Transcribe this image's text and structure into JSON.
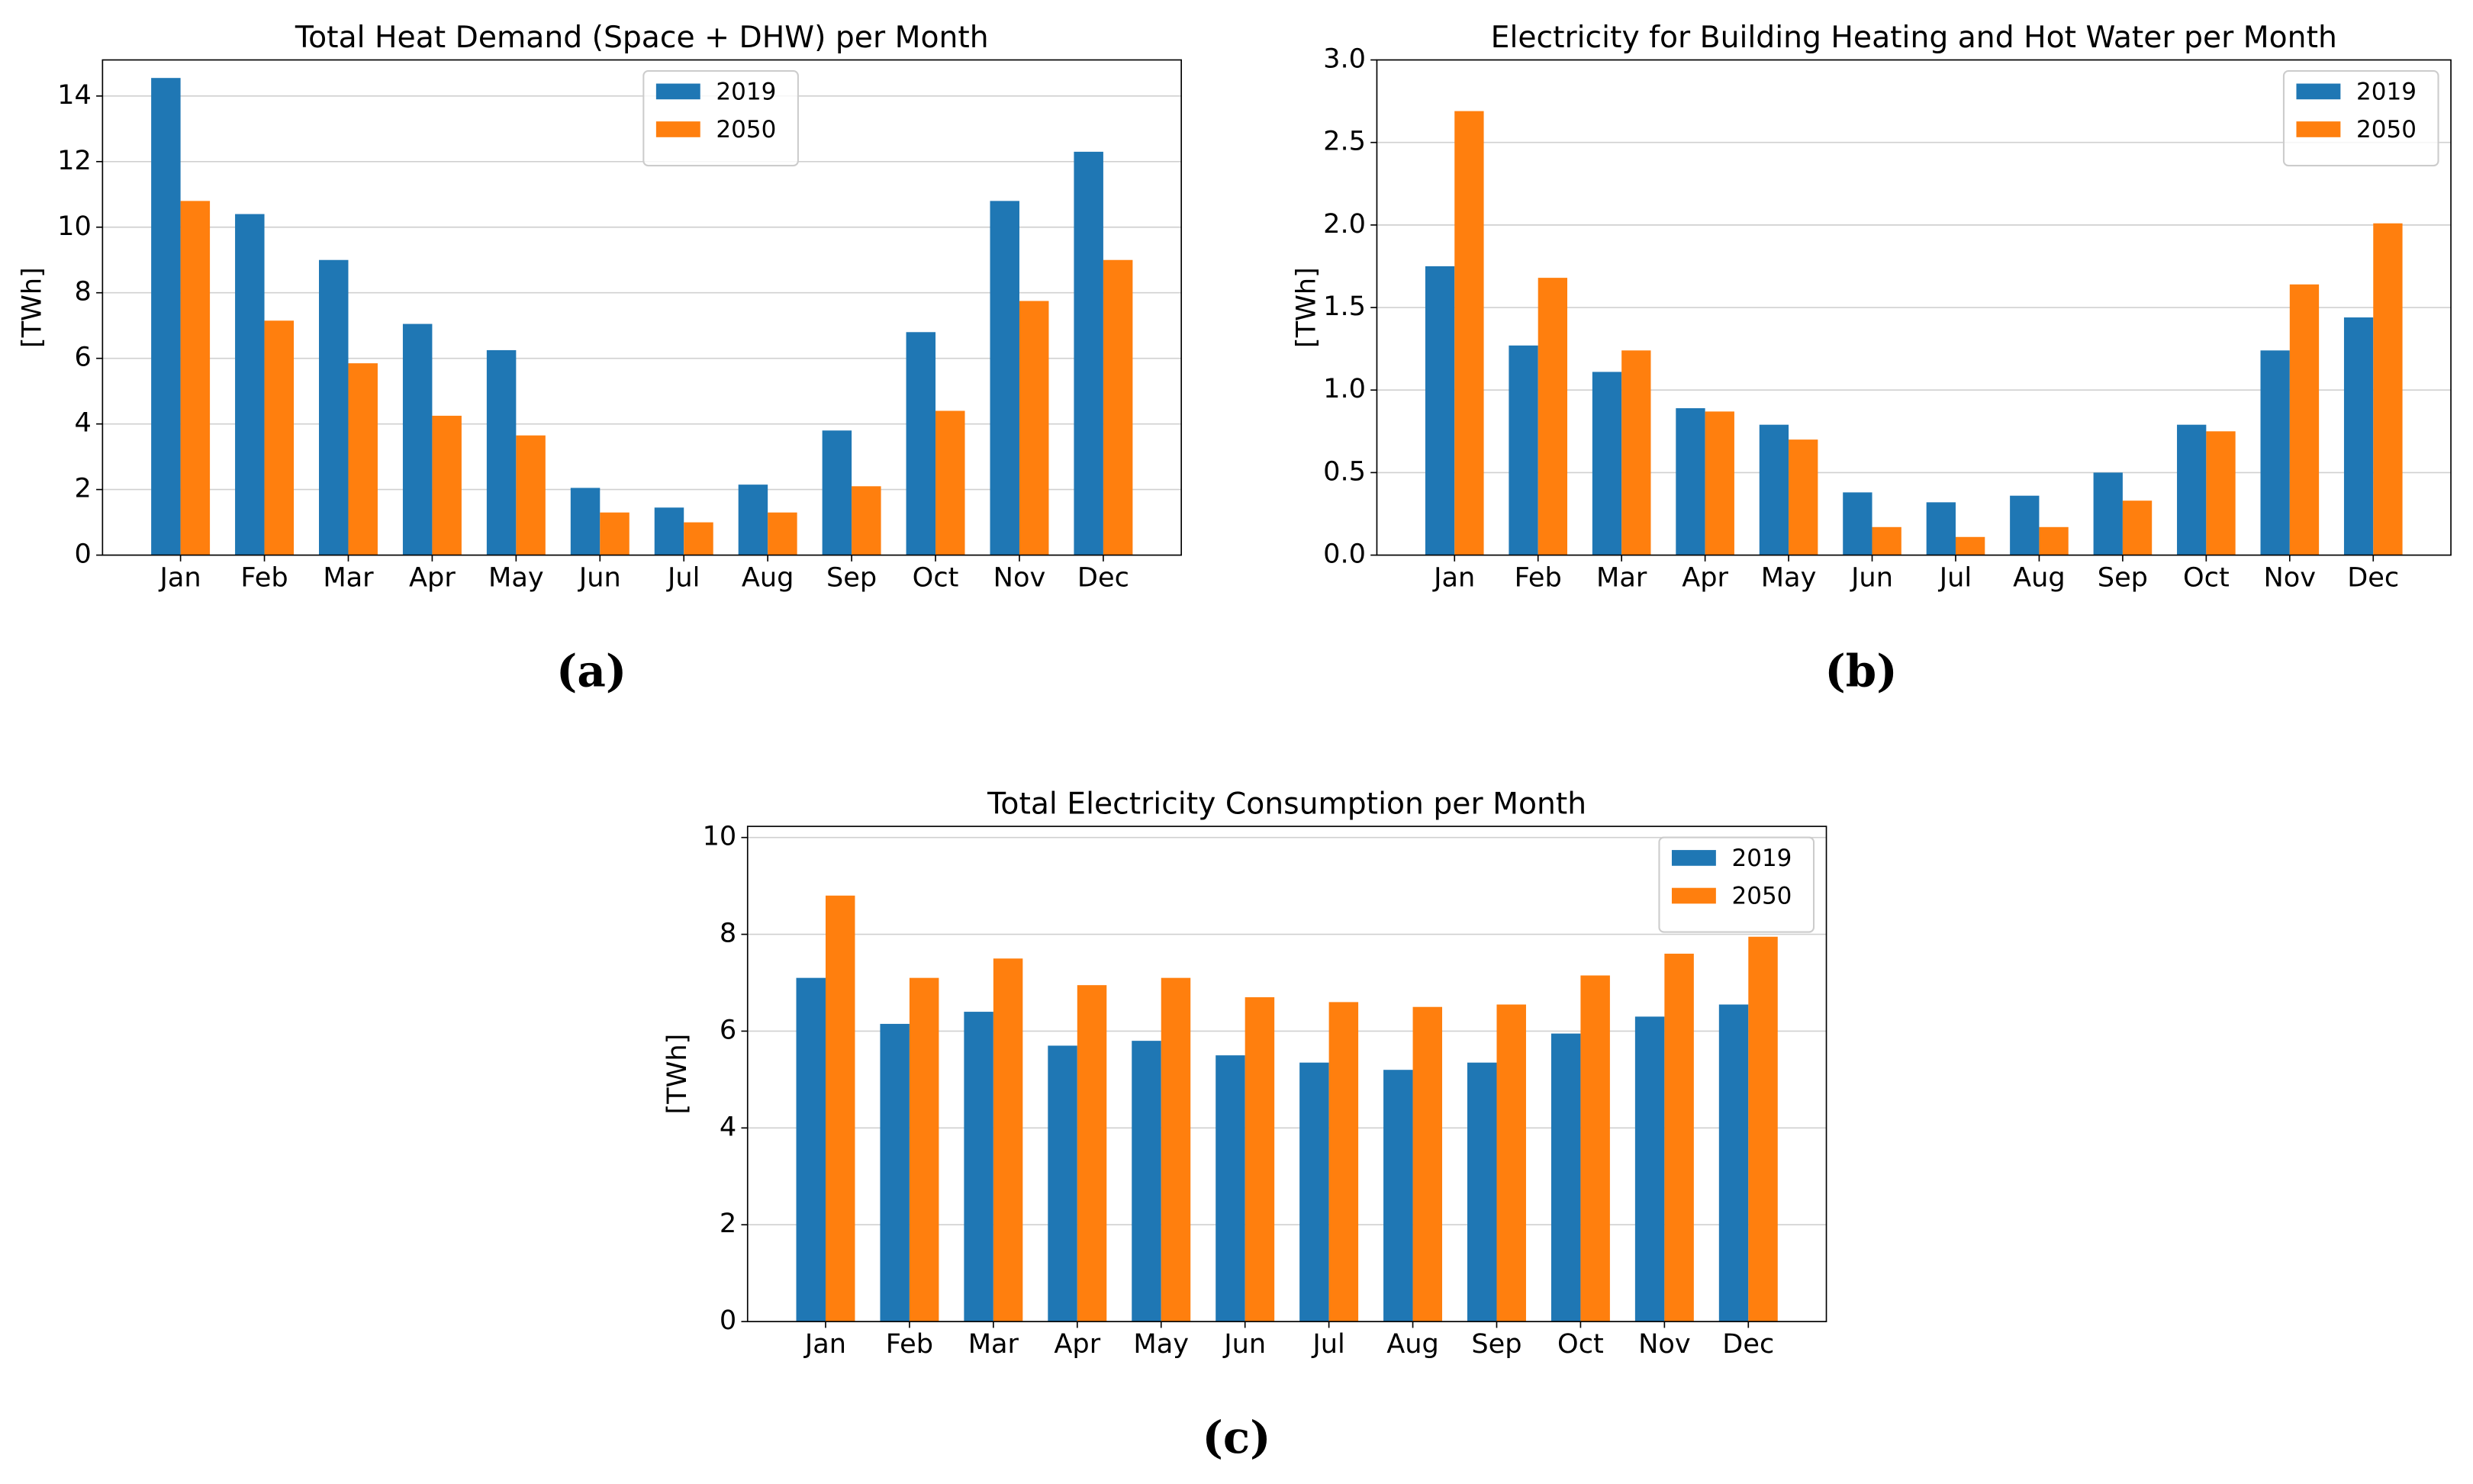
{
  "chart_data": [
    {
      "type": "bar",
      "title": "Total Heat Demand (Space + DHW) per Month",
      "ylabel": "[TWh]",
      "caption": "(a)",
      "categories": [
        "Jan",
        "Feb",
        "Mar",
        "Apr",
        "May",
        "Jun",
        "Jul",
        "Aug",
        "Sep",
        "Oct",
        "Nov",
        "Dec"
      ],
      "series": [
        {
          "name": "2019",
          "color": "#1f77b4",
          "values": [
            14.55,
            10.4,
            9.0,
            7.05,
            6.25,
            2.05,
            1.45,
            2.15,
            3.8,
            6.8,
            10.8,
            12.3
          ]
        },
        {
          "name": "2050",
          "color": "#ff7f0e",
          "values": [
            10.8,
            7.15,
            5.85,
            4.25,
            3.65,
            1.3,
            1.0,
            1.3,
            2.1,
            4.4,
            7.75,
            9.0
          ]
        }
      ],
      "ylim": [
        0,
        15.1
      ],
      "yticks": [
        0,
        2,
        4,
        6,
        8,
        10,
        12,
        14
      ],
      "grid": true,
      "legend": "upper center"
    },
    {
      "type": "bar",
      "title": "Electricity for Building Heating and Hot Water per Month",
      "ylabel": "[TWh]",
      "caption": "(b)",
      "categories": [
        "Jan",
        "Feb",
        "Mar",
        "Apr",
        "May",
        "Jun",
        "Jul",
        "Aug",
        "Sep",
        "Oct",
        "Nov",
        "Dec"
      ],
      "series": [
        {
          "name": "2019",
          "color": "#1f77b4",
          "values": [
            1.75,
            1.27,
            1.11,
            0.89,
            0.79,
            0.38,
            0.32,
            0.36,
            0.5,
            0.79,
            1.24,
            1.44
          ]
        },
        {
          "name": "2050",
          "color": "#ff7f0e",
          "values": [
            2.69,
            1.68,
            1.24,
            0.87,
            0.7,
            0.17,
            0.11,
            0.17,
            0.33,
            0.75,
            1.64,
            2.01
          ]
        }
      ],
      "ylim": [
        0,
        3.0
      ],
      "yticks": [
        {
          "value": 0,
          "label": "0.0"
        },
        0.5,
        {
          "value": 1,
          "label": "1.0"
        },
        1.5,
        {
          "value": 2,
          "label": "2.0"
        },
        2.5,
        {
          "value": 3,
          "label": "3.0"
        }
      ],
      "grid": true,
      "legend": "upper right"
    },
    {
      "type": "bar",
      "title": "Total Electricity Consumption per Month",
      "ylabel": "[TWh]",
      "caption": "(c)",
      "categories": [
        "Jan",
        "Feb",
        "Mar",
        "Apr",
        "May",
        "Jun",
        "Jul",
        "Aug",
        "Sep",
        "Oct",
        "Nov",
        "Dec"
      ],
      "series": [
        {
          "name": "2019",
          "color": "#1f77b4",
          "values": [
            7.1,
            6.15,
            6.4,
            5.7,
            5.8,
            5.5,
            5.35,
            5.2,
            5.35,
            5.95,
            6.3,
            6.55
          ]
        },
        {
          "name": "2050",
          "color": "#ff7f0e",
          "values": [
            8.8,
            7.1,
            7.5,
            6.95,
            7.1,
            6.7,
            6.6,
            6.5,
            6.55,
            7.15,
            7.6,
            7.95
          ]
        }
      ],
      "ylim": [
        0,
        10.23
      ],
      "yticks": [
        0,
        2,
        4,
        6,
        8,
        10
      ],
      "grid": true,
      "legend": "upper right"
    }
  ]
}
